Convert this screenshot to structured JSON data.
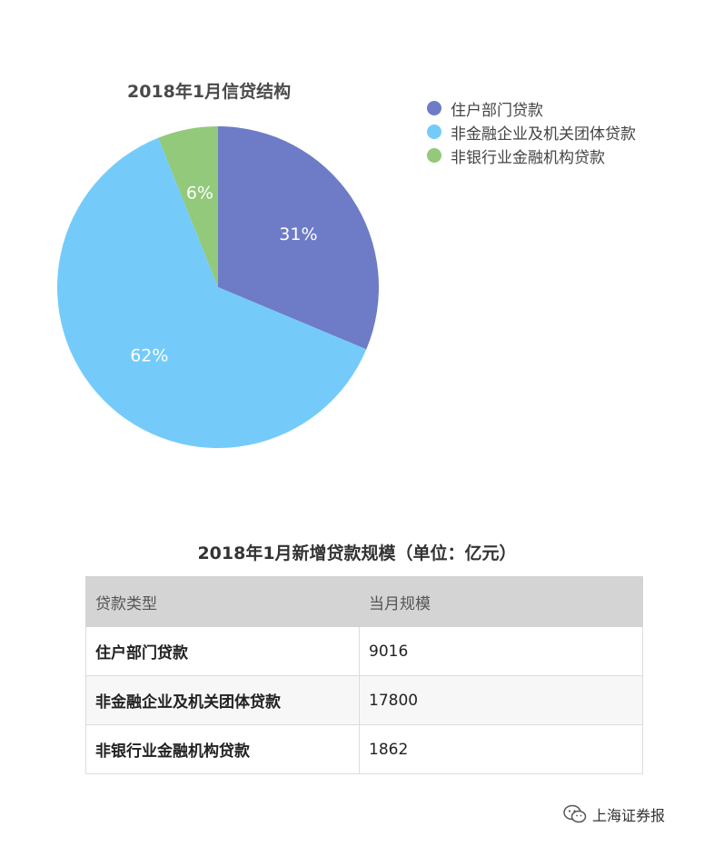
{
  "chart_data": {
    "type": "pie",
    "title": "2018年1月信贷结构",
    "slices": [
      {
        "label": "住户部门贷款",
        "value": 31,
        "display": "31%",
        "color": "#6e7cc7"
      },
      {
        "label": "非金融企业及机关团体贷款",
        "value": 62,
        "display": "62%",
        "color": "#74cbfa"
      },
      {
        "label": "非银行业金融机构贷款",
        "value": 6,
        "display": "6%",
        "color": "#92c97b"
      }
    ],
    "legend_placement": "top-right"
  },
  "table": {
    "title": "2018年1月新增贷款规模（单位：亿元）",
    "headers": [
      "贷款类型",
      "当月规模"
    ],
    "rows": [
      {
        "type": "住户部门贷款",
        "value": "9016"
      },
      {
        "type": "非金融企业及机关团体贷款",
        "value": "17800"
      },
      {
        "type": "非银行业金融机构贷款",
        "value": "1862"
      }
    ]
  },
  "watermark": {
    "text": "上海证券报",
    "icon": "wechat-icon"
  }
}
